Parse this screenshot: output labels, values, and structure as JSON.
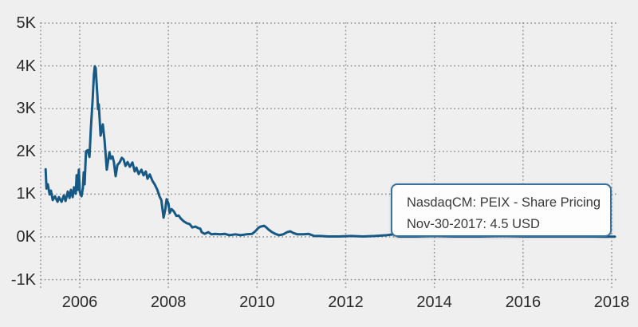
{
  "colors": {
    "background": "#efefef",
    "line": "#175985",
    "grid": "#8c8c8c",
    "tooltip_border": "#36719f",
    "tooltip_bg": "#fdfdfd",
    "text": "#2b2b2b",
    "tooltip_text": "#3a3a3a"
  },
  "tooltip": {
    "title": "NasdaqCM: PEIX - Share Pricing",
    "value_line": "Nov-30-2017: 4.5 USD"
  },
  "chart_data": {
    "type": "line",
    "title": "NasdaqCM: PEIX - Share Pricing",
    "xlabel": "",
    "ylabel": "",
    "grid": "dotted",
    "legend_position": "none",
    "x_range": [
      2005.12,
      2018.15
    ],
    "ylim_k": [
      -1,
      5
    ],
    "x_ticks": [
      "2006",
      "2008",
      "2010",
      "2012",
      "2014",
      "2016",
      "2018"
    ],
    "x_tick_values": [
      2006,
      2008,
      2010,
      2012,
      2014,
      2016,
      2018
    ],
    "y_ticks": [
      "5K",
      "4K",
      "3K",
      "2K",
      "1K",
      "0K",
      "-1K"
    ],
    "y_tick_values": [
      5,
      4,
      3,
      2,
      1,
      0,
      -1
    ],
    "last_point": {
      "date": "Nov-30-2017",
      "value_usd": 4.5
    },
    "series": [
      {
        "name": "NasdaqCM: PEIX - Share Pricing",
        "units": "K USD",
        "points": [
          [
            2005.23,
            1.58
          ],
          [
            2005.25,
            1.13
          ],
          [
            2005.28,
            1.23
          ],
          [
            2005.32,
            0.99
          ],
          [
            2005.35,
            1.08
          ],
          [
            2005.39,
            0.86
          ],
          [
            2005.44,
            0.95
          ],
          [
            2005.5,
            0.82
          ],
          [
            2005.53,
            0.93
          ],
          [
            2005.59,
            0.82
          ],
          [
            2005.64,
            0.97
          ],
          [
            2005.68,
            0.84
          ],
          [
            2005.73,
            1.06
          ],
          [
            2005.77,
            0.91
          ],
          [
            2005.8,
            1.1
          ],
          [
            2005.84,
            0.93
          ],
          [
            2005.87,
            1.16
          ],
          [
            2005.91,
            1.01
          ],
          [
            2005.93,
            1.44
          ],
          [
            2005.95,
            1.1
          ],
          [
            2005.98,
            1.57
          ],
          [
            2006.0,
            1.06
          ],
          [
            2006.04,
            0.95
          ],
          [
            2006.07,
            1.14
          ],
          [
            2006.09,
            1.51
          ],
          [
            2006.11,
            1.23
          ],
          [
            2006.14,
            2.0
          ],
          [
            2006.18,
            2.03
          ],
          [
            2006.22,
            1.87
          ],
          [
            2006.25,
            2.52
          ],
          [
            2006.29,
            3.19
          ],
          [
            2006.32,
            3.81
          ],
          [
            2006.34,
            3.99
          ],
          [
            2006.36,
            3.94
          ],
          [
            2006.4,
            3.28
          ],
          [
            2006.41,
            2.99
          ],
          [
            2006.43,
            3.1
          ],
          [
            2006.47,
            2.37
          ],
          [
            2006.52,
            2.63
          ],
          [
            2006.56,
            2.26
          ],
          [
            2006.61,
            1.57
          ],
          [
            2006.67,
            1.98
          ],
          [
            2006.7,
            1.83
          ],
          [
            2006.74,
            1.88
          ],
          [
            2006.77,
            1.75
          ],
          [
            2006.81,
            1.42
          ],
          [
            2006.85,
            1.68
          ],
          [
            2006.9,
            1.74
          ],
          [
            2006.95,
            1.85
          ],
          [
            2006.99,
            1.81
          ],
          [
            2007.03,
            1.66
          ],
          [
            2007.08,
            1.75
          ],
          [
            2007.13,
            1.64
          ],
          [
            2007.19,
            1.74
          ],
          [
            2007.24,
            1.53
          ],
          [
            2007.28,
            1.62
          ],
          [
            2007.33,
            1.47
          ],
          [
            2007.39,
            1.57
          ],
          [
            2007.44,
            1.44
          ],
          [
            2007.49,
            1.53
          ],
          [
            2007.53,
            1.36
          ],
          [
            2007.58,
            1.46
          ],
          [
            2007.64,
            1.31
          ],
          [
            2007.69,
            1.23
          ],
          [
            2007.75,
            1.1
          ],
          [
            2007.8,
            0.95
          ],
          [
            2007.84,
            0.86
          ],
          [
            2007.89,
            0.45
          ],
          [
            2007.93,
            0.65
          ],
          [
            2007.96,
            0.88
          ],
          [
            2008.0,
            0.78
          ],
          [
            2008.03,
            0.56
          ],
          [
            2008.07,
            0.65
          ],
          [
            2008.12,
            0.6
          ],
          [
            2008.18,
            0.49
          ],
          [
            2008.23,
            0.5
          ],
          [
            2008.28,
            0.43
          ],
          [
            2008.34,
            0.37
          ],
          [
            2008.41,
            0.32
          ],
          [
            2008.48,
            0.3
          ],
          [
            2008.54,
            0.22
          ],
          [
            2008.61,
            0.24
          ],
          [
            2008.66,
            0.21
          ],
          [
            2008.72,
            0.19
          ],
          [
            2008.75,
            0.11
          ],
          [
            2008.82,
            0.07
          ],
          [
            2008.9,
            0.11
          ],
          [
            2008.97,
            0.06
          ],
          [
            2009.06,
            0.07
          ],
          [
            2009.17,
            0.06
          ],
          [
            2009.27,
            0.07
          ],
          [
            2009.38,
            0.04
          ],
          [
            2009.51,
            0.06
          ],
          [
            2009.63,
            0.04
          ],
          [
            2009.76,
            0.06
          ],
          [
            2009.89,
            0.07
          ],
          [
            2009.96,
            0.13
          ],
          [
            2010.03,
            0.21
          ],
          [
            2010.08,
            0.24
          ],
          [
            2010.16,
            0.26
          ],
          [
            2010.21,
            0.22
          ],
          [
            2010.26,
            0.17
          ],
          [
            2010.34,
            0.11
          ],
          [
            2010.41,
            0.07
          ],
          [
            2010.5,
            0.04
          ],
          [
            2010.59,
            0.06
          ],
          [
            2010.68,
            0.11
          ],
          [
            2010.75,
            0.13
          ],
          [
            2010.82,
            0.09
          ],
          [
            2010.91,
            0.06
          ],
          [
            2011.04,
            0.06
          ],
          [
            2011.16,
            0.07
          ],
          [
            2011.29,
            0.02
          ],
          [
            2011.43,
            0.02
          ],
          [
            2011.61,
            0.01
          ],
          [
            2011.85,
            0.01
          ],
          [
            2012.12,
            0.02
          ],
          [
            2012.39,
            0.01
          ],
          [
            2012.66,
            0.02
          ],
          [
            2012.93,
            0.04
          ],
          [
            2013.07,
            0.06
          ],
          [
            2013.2,
            0.01
          ],
          [
            2013.56,
            0.01
          ],
          [
            2014.01,
            0.02
          ],
          [
            2014.46,
            0.01
          ],
          [
            2015.0,
            0.01
          ],
          [
            2015.54,
            0.02
          ],
          [
            2016.08,
            0.01
          ],
          [
            2016.62,
            0.01
          ],
          [
            2017.16,
            0.01
          ],
          [
            2017.61,
            0.01
          ],
          [
            2017.88,
            0.005
          ],
          [
            2017.92,
            0.0045
          ],
          [
            2018.07,
            0.005
          ]
        ]
      }
    ]
  }
}
